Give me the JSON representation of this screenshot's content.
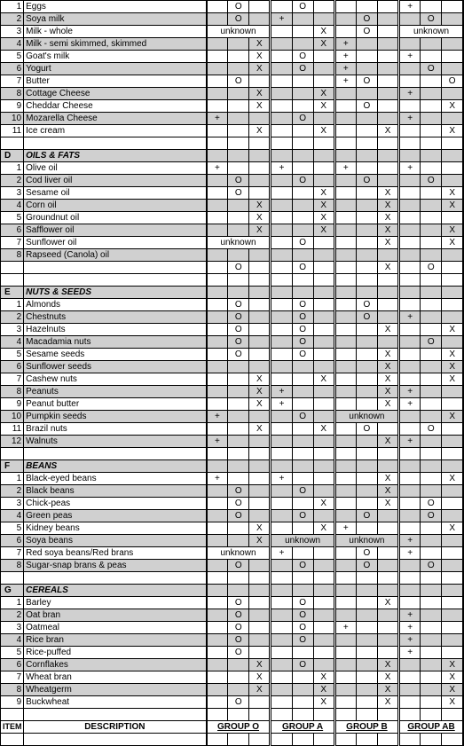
{
  "headers": {
    "item": "ITEM",
    "description": "DESCRIPTION",
    "groupO": "GROUP O",
    "groupA": "GROUP A",
    "groupB": "GROUP B",
    "groupAB": "GROUP AB"
  },
  "colors": {
    "shade": "#d0d0d0",
    "border": "#000000",
    "bg": "#ffffff"
  },
  "markers": {
    "o": "O",
    "x": "X",
    "plus": "+",
    "unknown": "unknown"
  },
  "sections": [
    {
      "letter": "",
      "title": "",
      "rows": [
        {
          "n": "1",
          "desc": "Eggs",
          "shade": false,
          "cells": [
            "",
            "O",
            "",
            "",
            "O",
            "",
            "",
            "",
            "",
            "+",
            "",
            ""
          ]
        },
        {
          "n": "2",
          "desc": "Soya milk",
          "shade": true,
          "cells": [
            "",
            "O",
            "",
            "+",
            "",
            "",
            "",
            "O",
            "",
            "",
            "O",
            ""
          ]
        },
        {
          "n": "3",
          "desc": "Milk - whole",
          "shade": false,
          "cells": [
            "unknown",
            "unknown",
            "unknown",
            "",
            "",
            "X",
            "",
            "O",
            "",
            "unknown",
            "unknown",
            "unknown"
          ]
        },
        {
          "n": "4",
          "desc": "Milk - semi skimmed, skimmed",
          "shade": true,
          "cells": [
            "",
            "",
            "X",
            "",
            "",
            "X",
            "+",
            "",
            "",
            "",
            "",
            ""
          ]
        },
        {
          "n": "5",
          "desc": "Goat's milk",
          "shade": false,
          "cells": [
            "",
            "",
            "X",
            "",
            "O",
            "",
            "+",
            "",
            "",
            "+",
            "",
            ""
          ]
        },
        {
          "n": "6",
          "desc": "Yogurt",
          "shade": true,
          "cells": [
            "",
            "",
            "X",
            "",
            "O",
            "",
            "+",
            "",
            "",
            "",
            "O",
            ""
          ]
        },
        {
          "n": "7",
          "desc": "Butter",
          "shade": false,
          "cells": [
            "",
            "O",
            "",
            "",
            "",
            "",
            "+",
            "O",
            "",
            "",
            "",
            "O"
          ]
        },
        {
          "n": "8",
          "desc": "Cottage Cheese",
          "shade": true,
          "cells": [
            "",
            "",
            "X",
            "",
            "",
            "X",
            "",
            "",
            "",
            "+",
            "",
            ""
          ]
        },
        {
          "n": "9",
          "desc": "Cheddar Cheese",
          "shade": false,
          "cells": [
            "",
            "",
            "X",
            "",
            "",
            "X",
            "",
            "O",
            "",
            "",
            "",
            "X"
          ]
        },
        {
          "n": "10",
          "desc": "Mozarella Cheese",
          "shade": true,
          "cells": [
            "+",
            "",
            "",
            "",
            "O",
            "",
            "",
            "",
            "",
            "+",
            "",
            ""
          ]
        },
        {
          "n": "11",
          "desc": "Ice cream",
          "shade": false,
          "cells": [
            "",
            "",
            "X",
            "",
            "",
            "X",
            "",
            "",
            "X",
            "",
            "",
            "X"
          ]
        }
      ]
    },
    {
      "letter": "D",
      "title": "OILS & FATS",
      "rows": [
        {
          "n": "1",
          "desc": "Olive oil",
          "shade": false,
          "cells": [
            "+",
            "",
            "",
            "+",
            "",
            "",
            "+",
            "",
            "",
            "+",
            "",
            ""
          ]
        },
        {
          "n": "2",
          "desc": "Cod liver oil",
          "shade": true,
          "cells": [
            "",
            "O",
            "",
            "",
            "O",
            "",
            "",
            "O",
            "",
            "",
            "O",
            ""
          ]
        },
        {
          "n": "3",
          "desc": "Sesame oil",
          "shade": false,
          "cells": [
            "",
            "O",
            "",
            "",
            "",
            "X",
            "",
            "",
            "X",
            "",
            "",
            "X"
          ]
        },
        {
          "n": "4",
          "desc": "Corn oil",
          "shade": true,
          "cells": [
            "",
            "",
            "X",
            "",
            "",
            "X",
            "",
            "",
            "X",
            "",
            "",
            "X"
          ]
        },
        {
          "n": "5",
          "desc": "Groundnut oil",
          "shade": false,
          "cells": [
            "",
            "",
            "X",
            "",
            "",
            "X",
            "",
            "",
            "X",
            "",
            "",
            ""
          ]
        },
        {
          "n": "6",
          "desc": "Safflower oil",
          "shade": true,
          "cells": [
            "",
            "",
            "X",
            "",
            "",
            "X",
            "",
            "",
            "X",
            "",
            "",
            "X"
          ]
        },
        {
          "n": "7",
          "desc": "Sunflower oil",
          "shade": false,
          "cells": [
            "unknown",
            "unknown",
            "unknown",
            "",
            "O",
            "",
            "",
            "",
            "X",
            "",
            "",
            "X"
          ]
        },
        {
          "n": "8",
          "desc": "Rapseed (Canola) oil",
          "shade": true,
          "cells": [
            "",
            "",
            "",
            "",
            "",
            "",
            "",
            "",
            "",
            "",
            "",
            ""
          ]
        },
        {
          "n": "",
          "desc": "",
          "shade": false,
          "cells": [
            "",
            "O",
            "",
            "",
            "O",
            "",
            "",
            "",
            "X",
            "",
            "O",
            ""
          ]
        }
      ]
    },
    {
      "letter": "E",
      "title": "NUTS & SEEDS",
      "rows": [
        {
          "n": "1",
          "desc": "Almonds",
          "shade": false,
          "cells": [
            "",
            "O",
            "",
            "",
            "O",
            "",
            "",
            "O",
            "",
            "",
            "",
            ""
          ]
        },
        {
          "n": "2",
          "desc": "Chestnuts",
          "shade": true,
          "cells": [
            "",
            "O",
            "",
            "",
            "O",
            "",
            "",
            "O",
            "",
            "+",
            "",
            ""
          ]
        },
        {
          "n": "3",
          "desc": "Hazelnuts",
          "shade": false,
          "cells": [
            "",
            "O",
            "",
            "",
            "O",
            "",
            "",
            "",
            "X",
            "",
            "",
            "X"
          ]
        },
        {
          "n": "4",
          "desc": "Macadamia nuts",
          "shade": true,
          "cells": [
            "",
            "O",
            "",
            "",
            "O",
            "",
            "",
            "",
            "",
            "",
            "O",
            ""
          ]
        },
        {
          "n": "5",
          "desc": "Sesame seeds",
          "shade": false,
          "cells": [
            "",
            "O",
            "",
            "",
            "O",
            "",
            "",
            "",
            "X",
            "",
            "",
            "X"
          ]
        },
        {
          "n": "6",
          "desc": "Sunflower seeds",
          "shade": true,
          "cells": [
            "",
            "",
            "",
            "",
            "",
            "",
            "",
            "",
            "X",
            "",
            "",
            "X"
          ]
        },
        {
          "n": "7",
          "desc": "Cashew nuts",
          "shade": false,
          "cells": [
            "",
            "",
            "X",
            "",
            "",
            "X",
            "",
            "",
            "X",
            "",
            "",
            "X"
          ]
        },
        {
          "n": "8",
          "desc": "Peanuts",
          "shade": true,
          "cells": [
            "",
            "",
            "X",
            "+",
            "",
            "",
            "",
            "",
            "X",
            "+",
            "",
            ""
          ]
        },
        {
          "n": "9",
          "desc": "Peanut butter",
          "shade": false,
          "cells": [
            "",
            "",
            "X",
            "+",
            "",
            "",
            "",
            "",
            "X",
            "+",
            "",
            ""
          ]
        },
        {
          "n": "10",
          "desc": "Pumpkin seeds",
          "shade": true,
          "cells": [
            "+",
            "",
            "",
            "",
            "O",
            "",
            "unknown",
            "unknown",
            "unknown",
            "",
            "",
            "X"
          ]
        },
        {
          "n": "11",
          "desc": "Brazil nuts",
          "shade": false,
          "cells": [
            "",
            "",
            "X",
            "",
            "",
            "X",
            "",
            "O",
            "",
            "",
            "O",
            ""
          ]
        },
        {
          "n": "12",
          "desc": "Walnuts",
          "shade": true,
          "cells": [
            "+",
            "",
            "",
            "",
            "",
            "",
            "",
            "",
            "X",
            "+",
            "",
            ""
          ]
        }
      ]
    },
    {
      "letter": "F",
      "title": "BEANS",
      "rows": [
        {
          "n": "1",
          "desc": "Black-eyed beans",
          "shade": false,
          "cells": [
            "+",
            "",
            "",
            "+",
            "",
            "",
            "",
            "",
            "X",
            "",
            "",
            "X"
          ]
        },
        {
          "n": "2",
          "desc": "Black beans",
          "shade": true,
          "cells": [
            "",
            "O",
            "",
            "",
            "O",
            "",
            "",
            "",
            "X",
            "",
            "",
            ""
          ]
        },
        {
          "n": "3",
          "desc": "Chick-peas",
          "shade": false,
          "cells": [
            "",
            "O",
            "",
            "",
            "",
            "X",
            "",
            "",
            "X",
            "",
            "O",
            ""
          ]
        },
        {
          "n": "4",
          "desc": "Green peas",
          "shade": true,
          "cells": [
            "",
            "O",
            "",
            "",
            "O",
            "",
            "",
            "O",
            "",
            "",
            "O",
            ""
          ]
        },
        {
          "n": "5",
          "desc": "Kidney beans",
          "shade": false,
          "cells": [
            "",
            "",
            "X",
            "",
            "",
            "X",
            "+",
            "",
            "",
            "",
            "",
            "X"
          ]
        },
        {
          "n": "6",
          "desc": "Soya beans",
          "shade": true,
          "cells": [
            "",
            "",
            "X",
            "unknown",
            "unknown",
            "unknown",
            "unknown",
            "unknown",
            "unknown",
            "+",
            "",
            ""
          ]
        },
        {
          "n": "7",
          "desc": "Red soya beans/Red brans",
          "shade": false,
          "cells": [
            "unknown",
            "unknown",
            "unknown",
            "+",
            "",
            "",
            "",
            "O",
            "",
            "+",
            "",
            ""
          ]
        },
        {
          "n": "8",
          "desc": "Sugar-snap brans & peas",
          "shade": true,
          "cells": [
            "",
            "O",
            "",
            "",
            "O",
            "",
            "",
            "O",
            "",
            "",
            "O",
            ""
          ]
        }
      ]
    },
    {
      "letter": "G",
      "title": "CEREALS",
      "rows": [
        {
          "n": "1",
          "desc": "Barley",
          "shade": false,
          "cells": [
            "",
            "O",
            "",
            "",
            "O",
            "",
            "",
            "",
            "X",
            "",
            "",
            ""
          ]
        },
        {
          "n": "2",
          "desc": "Oat bran",
          "shade": true,
          "cells": [
            "",
            "O",
            "",
            "",
            "O",
            "",
            "",
            "",
            "",
            "+",
            "",
            ""
          ]
        },
        {
          "n": "3",
          "desc": "Oatmeal",
          "shade": false,
          "cells": [
            "",
            "O",
            "",
            "",
            "O",
            "",
            "+",
            "",
            "",
            "+",
            "",
            ""
          ]
        },
        {
          "n": "4",
          "desc": "Rice bran",
          "shade": true,
          "cells": [
            "",
            "O",
            "",
            "",
            "O",
            "",
            "",
            "",
            "",
            "+",
            "",
            ""
          ]
        },
        {
          "n": "5",
          "desc": "Rice-puffed",
          "shade": false,
          "cells": [
            "",
            "O",
            "",
            "",
            "",
            "",
            "",
            "",
            "",
            "+",
            "",
            ""
          ]
        },
        {
          "n": "6",
          "desc": "Cornflakes",
          "shade": true,
          "cells": [
            "",
            "",
            "X",
            "",
            "O",
            "",
            "",
            "",
            "X",
            "",
            "",
            "X"
          ]
        },
        {
          "n": "7",
          "desc": "Wheat bran",
          "shade": false,
          "cells": [
            "",
            "",
            "X",
            "",
            "",
            "X",
            "",
            "",
            "X",
            "",
            "",
            "X"
          ]
        },
        {
          "n": "8",
          "desc": "Wheatgerm",
          "shade": true,
          "cells": [
            "",
            "",
            "X",
            "",
            "",
            "X",
            "",
            "",
            "X",
            "",
            "",
            "X"
          ]
        },
        {
          "n": "9",
          "desc": "Buckwheat",
          "shade": false,
          "cells": [
            "",
            "O",
            "",
            "",
            "",
            "X",
            "",
            "",
            "X",
            "",
            "",
            "X"
          ]
        }
      ]
    }
  ]
}
